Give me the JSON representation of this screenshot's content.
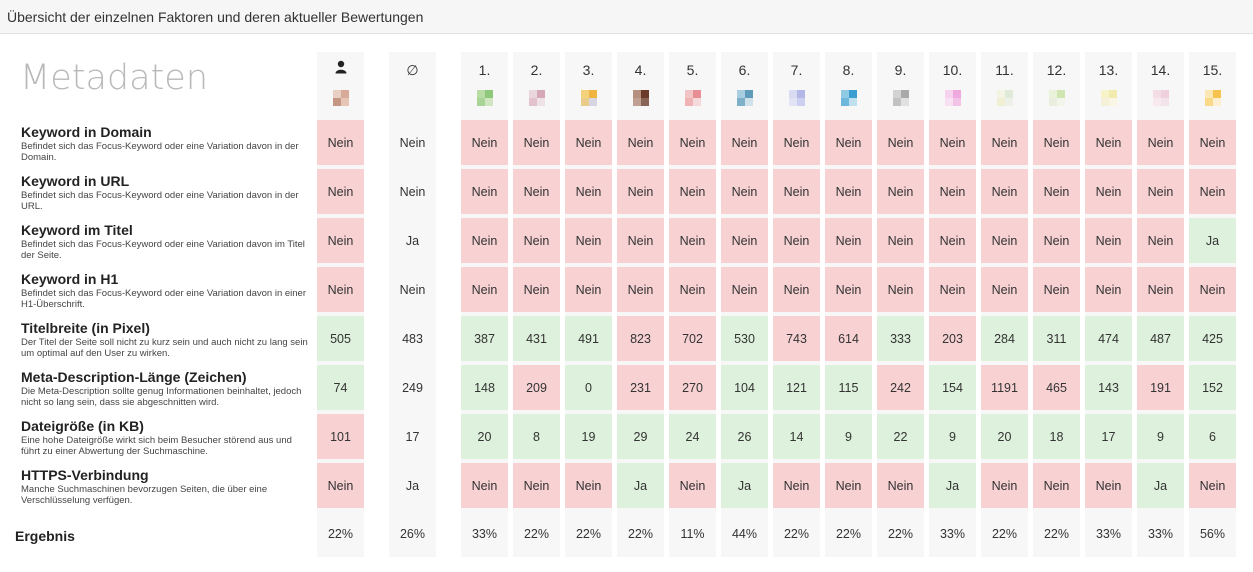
{
  "header_title": "Übersicht der einzelnen Faktoren und deren aktueller Bewertungen",
  "section_title": "Metadaten",
  "columns": [
    {
      "label": "",
      "icon": "user-icon",
      "colors": [
        "#e8cfc4",
        "#d8aa99",
        "#c69685",
        "#e6c4b6"
      ]
    },
    {
      "label": "∅",
      "icon": "",
      "colors": []
    },
    {
      "label": "1.",
      "colors": [
        "#b9dca5",
        "#8ec87b",
        "#a8d497",
        "#cfe6c0"
      ]
    },
    {
      "label": "2.",
      "colors": [
        "#ead6dd",
        "#d6a7b7",
        "#e3c1cd",
        "#efe2e6"
      ]
    },
    {
      "label": "3.",
      "colors": [
        "#f4d27c",
        "#f0b440",
        "#e9cb8a",
        "#d7d6e0"
      ]
    },
    {
      "label": "4.",
      "colors": [
        "#b59081",
        "#6b3a2a",
        "#c0a092",
        "#8a6456"
      ]
    },
    {
      "label": "5.",
      "colors": [
        "#f2c4c6",
        "#e78f95",
        "#f0b4b7",
        "#f6d9da"
      ]
    },
    {
      "label": "6.",
      "colors": [
        "#a9cde0",
        "#5f9cbb",
        "#7fb0c9",
        "#cfe2ec"
      ]
    },
    {
      "label": "7.",
      "colors": [
        "#d9dbf2",
        "#b4b8e6",
        "#e2e3f5",
        "#cccff0"
      ]
    },
    {
      "label": "8.",
      "colors": [
        "#8fc9e4",
        "#3a9fd0",
        "#6eb7dc",
        "#bfe0ef"
      ]
    },
    {
      "label": "9.",
      "colors": [
        "#d3d3d3",
        "#a9a9a9",
        "#c2c2c2",
        "#e1e1e1"
      ]
    },
    {
      "label": "10.",
      "colors": [
        "#f7d2ee",
        "#f0a9df",
        "#f8e1f2",
        "#f3c3e7"
      ]
    },
    {
      "label": "11.",
      "colors": [
        "#f4f4e4",
        "#dfead8",
        "#f0efd4",
        "#eef1e9"
      ]
    },
    {
      "label": "12.",
      "colors": [
        "#eaf2d9",
        "#cfe6b3",
        "#e9eedf",
        "#f2f5ea"
      ]
    },
    {
      "label": "13.",
      "colors": [
        "#f7f4cc",
        "#f1ecae",
        "#f5f1d9",
        "#f9f7e3"
      ]
    },
    {
      "label": "14.",
      "colors": [
        "#f5dde6",
        "#efd0dc",
        "#f8e9ee",
        "#f3e3ea"
      ]
    },
    {
      "label": "15.",
      "colors": [
        "#fbe7b3",
        "#f6c44e",
        "#fbd98a",
        "#fdf0d2"
      ]
    }
  ],
  "rows": [
    {
      "title": "Keyword in Domain",
      "desc": "Befindet sich das Focus-Keyword oder eine Variation davon in der Domain.",
      "values": [
        "Nein",
        "Nein",
        "Nein",
        "Nein",
        "Nein",
        "Nein",
        "Nein",
        "Nein",
        "Nein",
        "Nein",
        "Nein",
        "Nein",
        "Nein",
        "Nein",
        "Nein",
        "Nein",
        "Nein"
      ],
      "status": [
        "red",
        "plain",
        "red",
        "red",
        "red",
        "red",
        "red",
        "red",
        "red",
        "red",
        "red",
        "red",
        "red",
        "red",
        "red",
        "red",
        "red"
      ]
    },
    {
      "title": "Keyword in URL",
      "desc": "Befindet sich das Focus-Keyword oder eine Variation davon in der URL.",
      "values": [
        "Nein",
        "Nein",
        "Nein",
        "Nein",
        "Nein",
        "Nein",
        "Nein",
        "Nein",
        "Nein",
        "Nein",
        "Nein",
        "Nein",
        "Nein",
        "Nein",
        "Nein",
        "Nein",
        "Nein"
      ],
      "status": [
        "red",
        "plain",
        "red",
        "red",
        "red",
        "red",
        "red",
        "red",
        "red",
        "red",
        "red",
        "red",
        "red",
        "red",
        "red",
        "red",
        "red"
      ]
    },
    {
      "title": "Keyword im Titel",
      "desc": "Befindet sich das Focus-Keyword oder eine Variation davon im Titel der Seite.",
      "values": [
        "Nein",
        "Ja",
        "Nein",
        "Nein",
        "Nein",
        "Nein",
        "Nein",
        "Nein",
        "Nein",
        "Nein",
        "Nein",
        "Nein",
        "Nein",
        "Nein",
        "Nein",
        "Nein",
        "Ja"
      ],
      "status": [
        "red",
        "plain",
        "red",
        "red",
        "red",
        "red",
        "red",
        "red",
        "red",
        "red",
        "red",
        "red",
        "red",
        "red",
        "red",
        "red",
        "green"
      ]
    },
    {
      "title": "Keyword in H1",
      "desc": "Befindet sich das Focus-Keyword oder eine Variation davon in einer H1-Überschrift.",
      "values": [
        "Nein",
        "Nein",
        "Nein",
        "Nein",
        "Nein",
        "Nein",
        "Nein",
        "Nein",
        "Nein",
        "Nein",
        "Nein",
        "Nein",
        "Nein",
        "Nein",
        "Nein",
        "Nein",
        "Nein"
      ],
      "status": [
        "red",
        "plain",
        "red",
        "red",
        "red",
        "red",
        "red",
        "red",
        "red",
        "red",
        "red",
        "red",
        "red",
        "red",
        "red",
        "red",
        "red"
      ]
    },
    {
      "title": "Titelbreite (in Pixel)",
      "desc": "Der Titel der Seite soll nicht zu kurz sein und auch nicht zu lang sein um optimal auf den User zu wirken.",
      "values": [
        "505",
        "483",
        "387",
        "431",
        "491",
        "823",
        "702",
        "530",
        "743",
        "614",
        "333",
        "203",
        "284",
        "311",
        "474",
        "487",
        "425"
      ],
      "status": [
        "green",
        "plain",
        "green",
        "green",
        "green",
        "red",
        "red",
        "green",
        "red",
        "red",
        "green",
        "red",
        "green",
        "green",
        "green",
        "green",
        "green"
      ]
    },
    {
      "title": "Meta-Description-Länge (Zeichen)",
      "desc": "Die Meta-Description sollte genug Informationen beinhaltet, jedoch nicht so lang sein, dass sie abgeschnitten wird.",
      "values": [
        "74",
        "249",
        "148",
        "209",
        "0",
        "231",
        "270",
        "104",
        "121",
        "115",
        "242",
        "154",
        "1191",
        "465",
        "143",
        "191",
        "152"
      ],
      "status": [
        "green",
        "plain",
        "green",
        "red",
        "green",
        "red",
        "red",
        "green",
        "green",
        "green",
        "red",
        "green",
        "red",
        "red",
        "green",
        "red",
        "green"
      ]
    },
    {
      "title": "Dateigröße (in KB)",
      "desc": "Eine hohe Dateigröße wirkt sich beim Besucher störend aus und führt zu einer Abwertung der Suchmaschine.",
      "values": [
        "101",
        "17",
        "20",
        "8",
        "19",
        "29",
        "24",
        "26",
        "14",
        "9",
        "22",
        "9",
        "20",
        "18",
        "17",
        "9",
        "6"
      ],
      "status": [
        "red",
        "plain",
        "green",
        "green",
        "green",
        "green",
        "green",
        "green",
        "green",
        "green",
        "green",
        "green",
        "green",
        "green",
        "green",
        "green",
        "green"
      ]
    },
    {
      "title": "HTTPS-Verbindung",
      "desc": "Manche Suchmaschinen bevorzugen Seiten, die über eine Verschlüsselung verfügen.",
      "values": [
        "Nein",
        "Ja",
        "Nein",
        "Nein",
        "Nein",
        "Ja",
        "Nein",
        "Ja",
        "Nein",
        "Nein",
        "Nein",
        "Ja",
        "Nein",
        "Nein",
        "Nein",
        "Ja",
        "Nein"
      ],
      "status": [
        "red",
        "plain",
        "red",
        "red",
        "red",
        "green",
        "red",
        "green",
        "red",
        "red",
        "red",
        "green",
        "red",
        "red",
        "red",
        "green",
        "red"
      ]
    }
  ],
  "result_label": "Ergebnis",
  "results": [
    "22%",
    "26%",
    "33%",
    "22%",
    "22%",
    "22%",
    "11%",
    "44%",
    "22%",
    "22%",
    "22%",
    "33%",
    "22%",
    "22%",
    "33%",
    "33%",
    "56%"
  ]
}
